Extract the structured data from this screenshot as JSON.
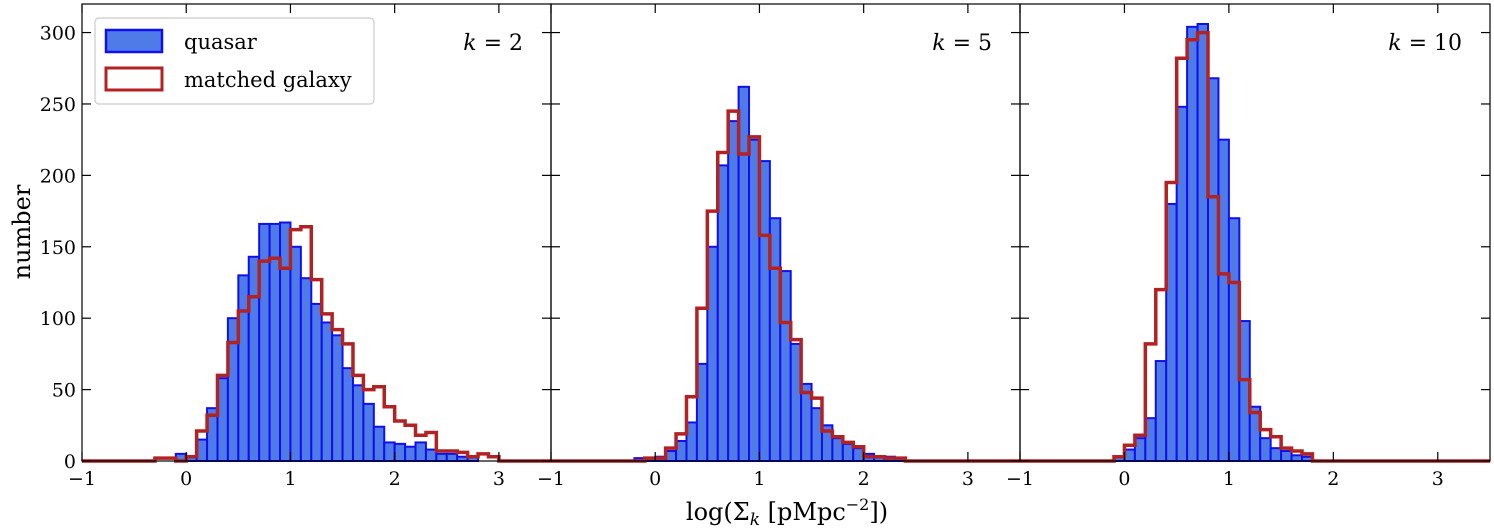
{
  "chart_data": {
    "type": "bar",
    "ylabel": "number",
    "xlabel": "log(Σ_k [pMpc^-2])",
    "xlabel_parts": {
      "prefix": "log(Σ",
      "sub": "k",
      "mid": " [pMpc",
      "sup": "−2",
      "suffix": "])"
    },
    "xlim": [
      -1,
      3.5
    ],
    "ylim": [
      0,
      320
    ],
    "xticks": [
      -1,
      0,
      1,
      2,
      3
    ],
    "yticks": [
      0,
      50,
      100,
      150,
      200,
      250,
      300
    ],
    "bin_width": 0.1,
    "legend": {
      "placement": "top-left",
      "entries": [
        "quasar",
        "matched galaxy"
      ]
    },
    "colors": {
      "quasar_fill": "#4f7be8",
      "quasar_edge": "#1010ee",
      "galaxy": "#b22222"
    },
    "panels": [
      {
        "label_var": "k",
        "label_value": "2",
        "quasar": {
          "bin_start": -0.1,
          "values": [
            5,
            3,
            15,
            37,
            58,
            100,
            130,
            143,
            166,
            166,
            167,
            150,
            128,
            110,
            97,
            88,
            65,
            53,
            40,
            24,
            13,
            12,
            10,
            13,
            8,
            5,
            5,
            3,
            3
          ]
        },
        "galaxy": {
          "bin_start": -0.3,
          "values": [
            2,
            2,
            0,
            3,
            21,
            32,
            60,
            83,
            105,
            115,
            140,
            142,
            135,
            162,
            164,
            127,
            103,
            92,
            82,
            60,
            50,
            52,
            38,
            28,
            25,
            18,
            20,
            7,
            7,
            6,
            3,
            5,
            3
          ]
        }
      },
      {
        "label_var": "k",
        "label_value": "5",
        "quasar": {
          "bin_start": -0.2,
          "values": [
            2,
            2,
            3,
            7,
            14,
            27,
            68,
            150,
            207,
            238,
            262,
            225,
            210,
            170,
            133,
            82,
            54,
            37,
            25,
            16,
            12,
            9,
            5,
            3,
            3,
            2
          ]
        },
        "galaxy": {
          "bin_start": -0.2,
          "values": [
            0,
            2,
            2,
            9,
            19,
            45,
            107,
            175,
            216,
            245,
            215,
            227,
            158,
            135,
            97,
            85,
            48,
            44,
            21,
            17,
            13,
            10,
            3,
            3,
            2,
            2
          ]
        }
      },
      {
        "label_var": "k",
        "label_value": "10",
        "quasar": {
          "bin_start": -0.1,
          "values": [
            3,
            8,
            16,
            30,
            70,
            180,
            248,
            304,
            306,
            268,
            225,
            170,
            98,
            38,
            16,
            9,
            7,
            4,
            3
          ]
        },
        "galaxy": {
          "bin_start": -0.1,
          "values": [
            3,
            11,
            18,
            82,
            120,
            195,
            282,
            295,
            300,
            185,
            131,
            125,
            57,
            34,
            22,
            17,
            9,
            7,
            5
          ]
        }
      }
    ]
  }
}
